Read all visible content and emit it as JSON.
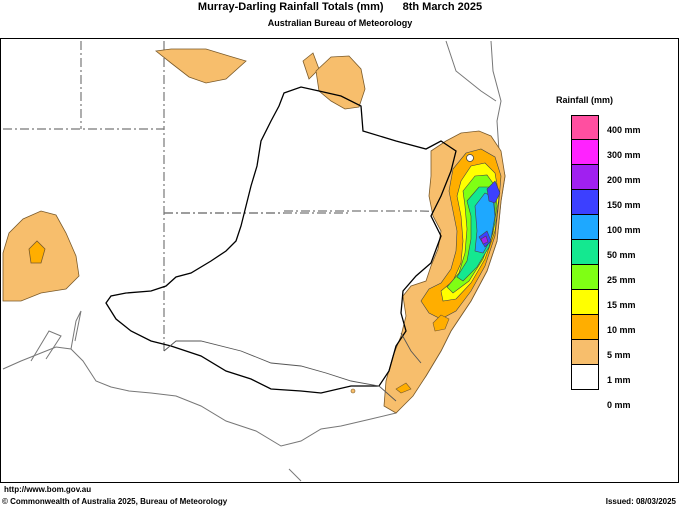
{
  "header": {
    "title": "Murray-Darling Rainfall Totals (mm)",
    "date": "8th March 2025",
    "agency": "Australian Bureau of Meteorology"
  },
  "legend": {
    "title": "Rainfall (mm)",
    "items": [
      {
        "label": "400 mm",
        "color": "#ff4fa0"
      },
      {
        "label": "300 mm",
        "color": "#ff22ff"
      },
      {
        "label": "200 mm",
        "color": "#a020f0"
      },
      {
        "label": "150 mm",
        "color": "#3c40ff"
      },
      {
        "label": "100 mm",
        "color": "#1ea8ff"
      },
      {
        "label": "50 mm",
        "color": "#14e890"
      },
      {
        "label": "25 mm",
        "color": "#7fff14"
      },
      {
        "label": "15 mm",
        "color": "#ffff00"
      },
      {
        "label": "10 mm",
        "color": "#ffae00"
      },
      {
        "label": "5 mm",
        "color": "#f7be6c"
      },
      {
        "label": "1 mm",
        "color": "#ffffff"
      },
      {
        "label": "0 mm",
        "color": "#ffffff"
      }
    ]
  },
  "footer": {
    "url": "http://www.bom.gov.au",
    "copyright": "© Commonwealth of Australia 2025, Bureau of Meteorology",
    "issued": "Issued: 08/03/2025"
  }
}
